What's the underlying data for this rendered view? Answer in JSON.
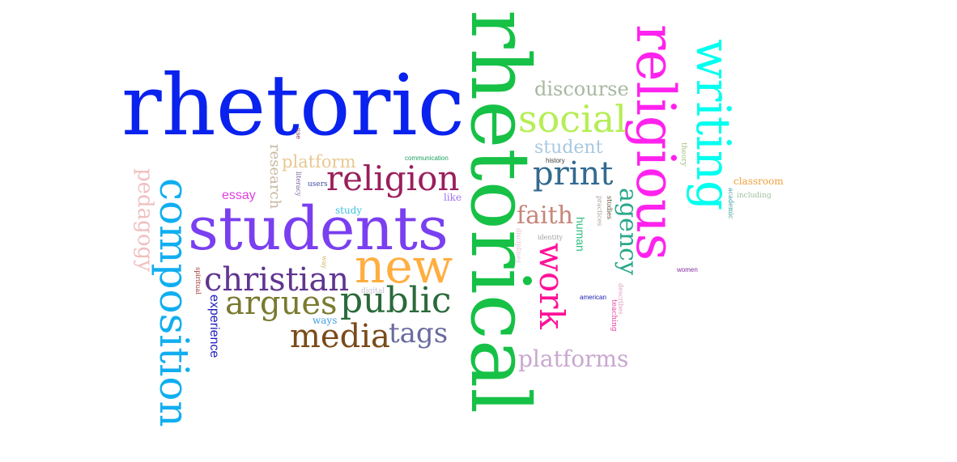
{
  "cloud": {
    "words": [
      {
        "text": "rhetoric",
        "color": "#0a22ee"
      },
      {
        "text": "rhetorical",
        "color": "#16c146"
      },
      {
        "text": "religious",
        "color": "#ff22ee"
      },
      {
        "text": "writing",
        "color": "#00ffee"
      },
      {
        "text": "students",
        "color": "#7a3ff0"
      },
      {
        "text": "composition",
        "color": "#10aef0"
      },
      {
        "text": "new",
        "color": "#ffae40"
      },
      {
        "text": "religion",
        "color": "#9a1f5c"
      },
      {
        "text": "social",
        "color": "#b5ee55"
      },
      {
        "text": "print",
        "color": "#336a90"
      },
      {
        "text": "public",
        "color": "#2a6a3a"
      },
      {
        "text": "christian",
        "color": "#603590"
      },
      {
        "text": "argues",
        "color": "#7a7a30"
      },
      {
        "text": "media",
        "color": "#7a4a1a"
      },
      {
        "text": "tags",
        "color": "#6a6aa0"
      },
      {
        "text": "work",
        "color": "#ff1199"
      },
      {
        "text": "agency",
        "color": "#2aa88a"
      },
      {
        "text": "faith",
        "color": "#c8867a"
      },
      {
        "text": "discourse",
        "color": "#a8b8a0"
      },
      {
        "text": "student",
        "color": "#a8c8e0"
      },
      {
        "text": "platforms",
        "color": "#c8a8d0"
      },
      {
        "text": "platform",
        "color": "#e8c890"
      },
      {
        "text": "research",
        "color": "#c8b8a0"
      },
      {
        "text": "pedagogy",
        "color": "#f0c0c0"
      },
      {
        "text": "essay",
        "color": "#e040e0"
      },
      {
        "text": "experience",
        "color": "#2020c0"
      },
      {
        "text": "human",
        "color": "#30c080"
      },
      {
        "text": "study",
        "color": "#40c0e0"
      },
      {
        "text": "ways",
        "color": "#40a0e0"
      },
      {
        "text": "like",
        "color": "#a070f0"
      },
      {
        "text": "classroom",
        "color": "#f0a040"
      },
      {
        "text": "users",
        "color": "#4050a0"
      },
      {
        "text": "communication",
        "color": "#20a060"
      },
      {
        "text": "history",
        "color": "#404040"
      },
      {
        "text": "literacy",
        "color": "#8060a0"
      },
      {
        "text": "use",
        "color": "#803050"
      },
      {
        "text": "theory",
        "color": "#a0c080"
      },
      {
        "text": "academic",
        "color": "#40a0a0"
      },
      {
        "text": "including",
        "color": "#a0c0a0"
      },
      {
        "text": "practices",
        "color": "#b0a0a0"
      },
      {
        "text": "studies",
        "color": "#605030"
      },
      {
        "text": "identity",
        "color": "#a0a0a0"
      },
      {
        "text": "disciplines",
        "color": "#e0c0d0"
      },
      {
        "text": "digital",
        "color": "#c0c0d0"
      },
      {
        "text": "way",
        "color": "#d0b060"
      },
      {
        "text": "spiritual",
        "color": "#a03030"
      },
      {
        "text": "american",
        "color": "#2020b0"
      },
      {
        "text": "teaching",
        "color": "#e040a0"
      },
      {
        "text": "describes",
        "color": "#e0a0c0"
      },
      {
        "text": "women",
        "color": "#8030a0"
      }
    ]
  }
}
